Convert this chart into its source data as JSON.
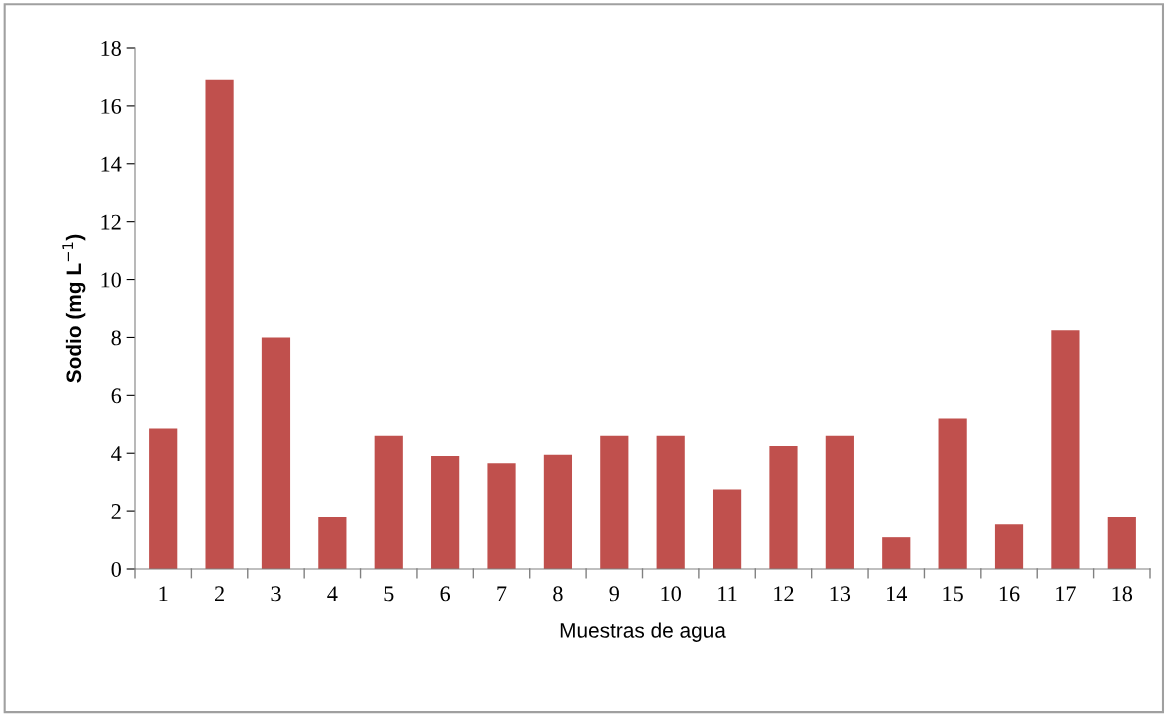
{
  "chart_data": {
    "type": "bar",
    "xlabel": "Muestras de agua",
    "ylabel": "Sodio (mg L$^{−1}$)",
    "categories": [
      "1",
      "2",
      "3",
      "4",
      "5",
      "6",
      "7",
      "8",
      "9",
      "10",
      "11",
      "12",
      "13",
      "14",
      "15",
      "16",
      "17",
      "18"
    ],
    "values": [
      4.85,
      16.9,
      8.0,
      1.8,
      4.6,
      3.9,
      3.65,
      3.95,
      4.6,
      4.6,
      2.75,
      4.25,
      4.6,
      1.1,
      5.2,
      1.55,
      8.25,
      1.8
    ],
    "color": "#c0504d",
    "ylim": [
      0,
      18
    ],
    "yticks": [
      0,
      2,
      4,
      6,
      8,
      10,
      12,
      14,
      16,
      18
    ],
    "grid": false,
    "legend": false
  }
}
